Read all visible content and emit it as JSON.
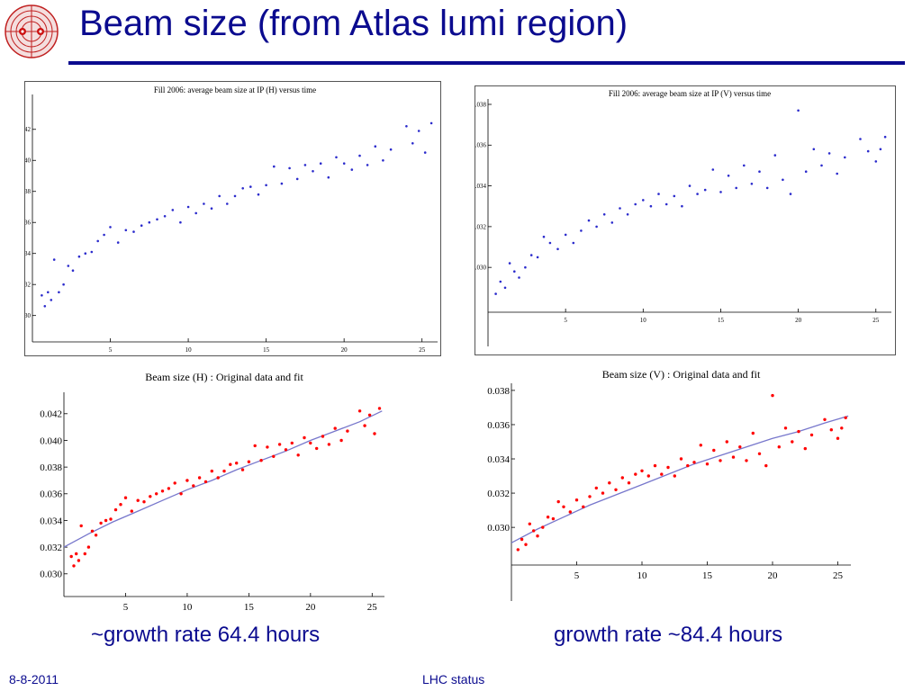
{
  "slide": {
    "title": "Beam size (from Atlas lumi region)",
    "caption_left": "~growth rate 64.4 hours",
    "caption_right": "growth rate ~84.4 hours",
    "footer_date": "8-8-2011",
    "footer_center": "LHC status",
    "accent_color": "#0b0b8f"
  },
  "chart_data": [
    {
      "id": "fill2006-h-vs-time",
      "type": "scatter",
      "title": "Fill 2006: average beam size at IP (H) versus time",
      "xlabel": "",
      "ylabel": "",
      "xlim": [
        0,
        26
      ],
      "ylim": [
        0.0283,
        0.0439
      ],
      "xticks": [
        5,
        10,
        15,
        20,
        25
      ],
      "yticks": [
        0.03,
        0.032,
        0.034,
        0.036,
        0.038,
        0.04,
        0.042
      ],
      "ytick_labels": [
        "0.030",
        "0.032",
        "0.034",
        "0.036",
        "0.038",
        "0.040",
        "0.042"
      ],
      "marker_color": "#2b2bcc",
      "series": [
        {
          "x": [
            0.6,
            0.8,
            1.0,
            1.2,
            1.4,
            1.7,
            2.0,
            2.3,
            2.6,
            3.0,
            3.4,
            3.8,
            4.2,
            4.6,
            5.0,
            5.5,
            6.0,
            6.5,
            7.0,
            7.5,
            8.0,
            8.5,
            9.0,
            9.5,
            10.0,
            10.5,
            11.0,
            11.5,
            12.0,
            12.5,
            13.0,
            13.5,
            14.0,
            14.5,
            15.0,
            15.5,
            16.0,
            16.5,
            17.0,
            17.5,
            18.0,
            18.5,
            19.0,
            19.5,
            20.0,
            20.5,
            21.0,
            21.5,
            22.0,
            22.5,
            23.0,
            24.0,
            24.4,
            24.8,
            25.2,
            25.6
          ],
          "y": [
            0.0313,
            0.0306,
            0.0315,
            0.031,
            0.0336,
            0.0315,
            0.032,
            0.0332,
            0.0329,
            0.0338,
            0.034,
            0.0341,
            0.0348,
            0.0352,
            0.0357,
            0.0347,
            0.0355,
            0.0354,
            0.0358,
            0.036,
            0.0362,
            0.0364,
            0.0368,
            0.036,
            0.037,
            0.0366,
            0.0372,
            0.0369,
            0.0377,
            0.0372,
            0.0377,
            0.0382,
            0.0383,
            0.0378,
            0.0384,
            0.0396,
            0.0385,
            0.0395,
            0.0388,
            0.0397,
            0.0393,
            0.0398,
            0.0389,
            0.0402,
            0.0398,
            0.0394,
            0.0403,
            0.0397,
            0.0409,
            0.04,
            0.0407,
            0.0422,
            0.0411,
            0.0419,
            0.0405,
            0.0424
          ]
        }
      ]
    },
    {
      "id": "fill2006-v-vs-time",
      "type": "scatter",
      "title": "Fill 2006: average beam size at IP (V) versus time",
      "xlabel": "",
      "ylabel": "",
      "xlim": [
        0,
        26
      ],
      "ylim": [
        0.0278,
        0.038
      ],
      "xticks": [
        5,
        10,
        15,
        20,
        25
      ],
      "yticks": [
        0.03,
        0.032,
        0.034,
        0.036,
        0.038
      ],
      "ytick_labels": [
        "0.030",
        "0.032",
        "0.034",
        "0.036",
        "0.038"
      ],
      "marker_color": "#2b2bcc",
      "series": [
        {
          "x": [
            0.5,
            0.8,
            1.1,
            1.4,
            1.7,
            2.0,
            2.4,
            2.8,
            3.2,
            3.6,
            4.0,
            4.5,
            5.0,
            5.5,
            6.0,
            6.5,
            7.0,
            7.5,
            8.0,
            8.5,
            9.0,
            9.5,
            10.0,
            10.5,
            11.0,
            11.5,
            12.0,
            12.5,
            13.0,
            13.5,
            14.0,
            14.5,
            15.0,
            15.5,
            16.0,
            16.5,
            17.0,
            17.5,
            18.0,
            18.5,
            19.0,
            19.5,
            20.0,
            20.5,
            21.0,
            21.5,
            22.0,
            22.5,
            23.0,
            24.0,
            24.5,
            25.0,
            25.3,
            25.6
          ],
          "y": [
            0.0287,
            0.0293,
            0.029,
            0.0302,
            0.0298,
            0.0295,
            0.03,
            0.0306,
            0.0305,
            0.0315,
            0.0312,
            0.0309,
            0.0316,
            0.0312,
            0.0318,
            0.0323,
            0.032,
            0.0326,
            0.0322,
            0.0329,
            0.0326,
            0.0331,
            0.0333,
            0.033,
            0.0336,
            0.0331,
            0.0335,
            0.033,
            0.034,
            0.0336,
            0.0338,
            0.0348,
            0.0337,
            0.0345,
            0.0339,
            0.035,
            0.0341,
            0.0347,
            0.0339,
            0.0355,
            0.0343,
            0.0336,
            0.0377,
            0.0347,
            0.0358,
            0.035,
            0.0356,
            0.0346,
            0.0354,
            0.0363,
            0.0357,
            0.0352,
            0.0358,
            0.0364
          ]
        }
      ]
    },
    {
      "id": "beam-size-h-fit",
      "type": "scatter",
      "title": "Beam size (H) : Original data and fit",
      "xlabel": "",
      "ylabel": "",
      "xlim": [
        0,
        26
      ],
      "ylim": [
        0.0283,
        0.0432
      ],
      "xticks": [
        5,
        10,
        15,
        20,
        25
      ],
      "yticks": [
        0.03,
        0.032,
        0.034,
        0.036,
        0.038,
        0.04,
        0.042
      ],
      "ytick_labels": [
        "0.030",
        "0.032",
        "0.034",
        "0.036",
        "0.038",
        "0.040",
        "0.042"
      ],
      "marker_color": "#ff0000",
      "fit_color": "#7777cc",
      "series": [
        {
          "x": [
            0.6,
            0.8,
            1.0,
            1.2,
            1.4,
            1.7,
            2.0,
            2.3,
            2.6,
            3.0,
            3.4,
            3.8,
            4.2,
            4.6,
            5.0,
            5.5,
            6.0,
            6.5,
            7.0,
            7.5,
            8.0,
            8.5,
            9.0,
            9.5,
            10.0,
            10.5,
            11.0,
            11.5,
            12.0,
            12.5,
            13.0,
            13.5,
            14.0,
            14.5,
            15.0,
            15.5,
            16.0,
            16.5,
            17.0,
            17.5,
            18.0,
            18.5,
            19.0,
            19.5,
            20.0,
            20.5,
            21.0,
            21.5,
            22.0,
            22.5,
            23.0,
            24.0,
            24.4,
            24.8,
            25.2,
            25.6
          ],
          "y": [
            0.0313,
            0.0306,
            0.0315,
            0.031,
            0.0336,
            0.0315,
            0.032,
            0.0332,
            0.0329,
            0.0338,
            0.034,
            0.0341,
            0.0348,
            0.0352,
            0.0357,
            0.0347,
            0.0355,
            0.0354,
            0.0358,
            0.036,
            0.0362,
            0.0364,
            0.0368,
            0.036,
            0.037,
            0.0366,
            0.0372,
            0.0369,
            0.0377,
            0.0372,
            0.0377,
            0.0382,
            0.0383,
            0.0378,
            0.0384,
            0.0396,
            0.0385,
            0.0395,
            0.0388,
            0.0397,
            0.0393,
            0.0398,
            0.0389,
            0.0402,
            0.0398,
            0.0394,
            0.0403,
            0.0397,
            0.0409,
            0.04,
            0.0407,
            0.0422,
            0.0411,
            0.0419,
            0.0405,
            0.0424
          ]
        }
      ],
      "fit": {
        "x": [
          0,
          2,
          4,
          6,
          8,
          10,
          12,
          14,
          16,
          18,
          20,
          22,
          24,
          25.8
        ],
        "y": [
          0.032,
          0.033,
          0.0339,
          0.0347,
          0.0355,
          0.0363,
          0.037,
          0.0378,
          0.0385,
          0.0392,
          0.04,
          0.0407,
          0.0414,
          0.0422
        ]
      }
    },
    {
      "id": "beam-size-v-fit",
      "type": "scatter",
      "title": "Beam size (V) : Original data and fit",
      "xlabel": "",
      "ylabel": "",
      "xlim": [
        0,
        26
      ],
      "ylim": [
        0.0278,
        0.0381
      ],
      "xticks": [
        5,
        10,
        15,
        20,
        25
      ],
      "yticks": [
        0.03,
        0.032,
        0.034,
        0.036,
        0.038
      ],
      "ytick_labels": [
        "0.030",
        "0.032",
        "0.034",
        "0.036",
        "0.038"
      ],
      "marker_color": "#ff0000",
      "fit_color": "#7777cc",
      "series": [
        {
          "x": [
            0.5,
            0.8,
            1.1,
            1.4,
            1.7,
            2.0,
            2.4,
            2.8,
            3.2,
            3.6,
            4.0,
            4.5,
            5.0,
            5.5,
            6.0,
            6.5,
            7.0,
            7.5,
            8.0,
            8.5,
            9.0,
            9.5,
            10.0,
            10.5,
            11.0,
            11.5,
            12.0,
            12.5,
            13.0,
            13.5,
            14.0,
            14.5,
            15.0,
            15.5,
            16.0,
            16.5,
            17.0,
            17.5,
            18.0,
            18.5,
            19.0,
            19.5,
            20.0,
            20.5,
            21.0,
            21.5,
            22.0,
            22.5,
            23.0,
            24.0,
            24.5,
            25.0,
            25.3,
            25.6
          ],
          "y": [
            0.0287,
            0.0293,
            0.029,
            0.0302,
            0.0298,
            0.0295,
            0.03,
            0.0306,
            0.0305,
            0.0315,
            0.0312,
            0.0309,
            0.0316,
            0.0312,
            0.0318,
            0.0323,
            0.032,
            0.0326,
            0.0322,
            0.0329,
            0.0326,
            0.0331,
            0.0333,
            0.033,
            0.0336,
            0.0331,
            0.0335,
            0.033,
            0.034,
            0.0336,
            0.0338,
            0.0348,
            0.0337,
            0.0345,
            0.0339,
            0.035,
            0.0341,
            0.0347,
            0.0339,
            0.0355,
            0.0343,
            0.0336,
            0.0377,
            0.0347,
            0.0358,
            0.035,
            0.0356,
            0.0346,
            0.0354,
            0.0363,
            0.0357,
            0.0352,
            0.0358,
            0.0364
          ]
        }
      ],
      "fit": {
        "x": [
          0,
          2,
          4,
          6,
          8,
          10,
          12,
          14,
          16,
          18,
          20,
          22,
          24,
          25.8
        ],
        "y": [
          0.0291,
          0.0299,
          0.0306,
          0.0313,
          0.0319,
          0.0325,
          0.0331,
          0.0337,
          0.0342,
          0.0347,
          0.0352,
          0.0356,
          0.0361,
          0.0365
        ]
      }
    }
  ]
}
